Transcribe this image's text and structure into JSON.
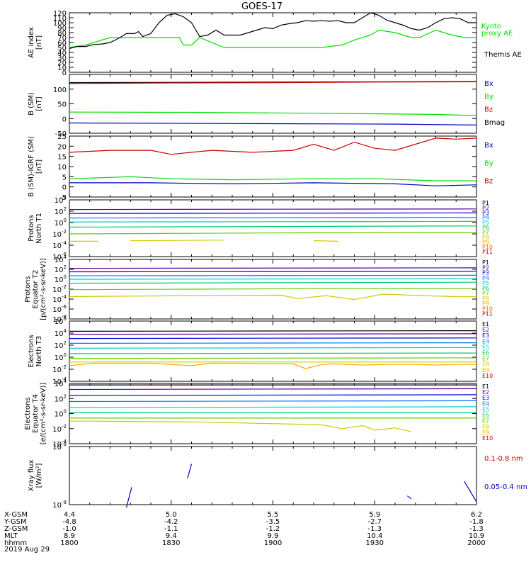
{
  "title": "GOES-17",
  "date_label": "2019 Aug 29",
  "colors": {
    "black": "#000000",
    "green": "#00dd00",
    "red": "#cc0000",
    "blue": "#0000cc",
    "p_series": [
      "#000000",
      "#550099",
      "#0000dd",
      "#0077ff",
      "#00cccc",
      "#00cc66",
      "#66cc00",
      "#cccc00",
      "#ffaa00",
      "#ff6600",
      "#cc0000"
    ],
    "e_series": [
      "#000000",
      "#550099",
      "#0000dd",
      "#0077ff",
      "#00cccc",
      "#00cc66",
      "#66cc00",
      "#cccc00",
      "#ffaa00",
      "#cc0000"
    ]
  },
  "ephemeris": {
    "row_labels": [
      "X-GSM",
      "Y-GSM",
      "Z-GSM",
      "MLT",
      "hhmm"
    ],
    "columns": [
      {
        "x": "4.4",
        "y": "-4.8",
        "z": "-1.0",
        "mlt": "8.9",
        "hhmm": "1800"
      },
      {
        "x": "5.0",
        "y": "-4.2",
        "z": "-1.1",
        "mlt": "9.4",
        "hhmm": "1830"
      },
      {
        "x": "5.5",
        "y": "-3.5",
        "z": "-1.2",
        "mlt": "9.9",
        "hhmm": "1900"
      },
      {
        "x": "5.9",
        "y": "-2.7",
        "z": "-1.3",
        "mlt": "10.4",
        "hhmm": "1930"
      },
      {
        "x": "6.2",
        "y": "-1.8",
        "z": "-1.3",
        "mlt": "10.9",
        "hhmm": "2000"
      }
    ]
  },
  "chart_data": [
    {
      "type": "line",
      "ylabel": "AE index [nT]",
      "ylim": [
        0,
        120
      ],
      "yticks": [
        "0",
        "10",
        "20",
        "30",
        "40",
        "50",
        "60",
        "70",
        "80",
        "90",
        "100",
        "110",
        "120"
      ],
      "legend": [
        "Kyoto proxy AE",
        "Themis AE"
      ],
      "series": [
        {
          "name": "Kyoto proxy AE",
          "color": "green",
          "x": [
            0,
            0.04,
            0.1,
            0.16,
            0.27,
            0.28,
            0.3,
            0.32,
            0.38,
            0.4,
            0.48,
            0.52,
            0.57,
            0.62,
            0.67,
            0.7,
            0.74,
            0.76,
            0.8,
            0.82,
            0.84,
            0.86,
            0.9,
            0.94,
            0.97,
            1.0
          ],
          "y": [
            50,
            55,
            70,
            70,
            70,
            55,
            55,
            70,
            50,
            50,
            50,
            50,
            50,
            50,
            55,
            65,
            75,
            85,
            80,
            75,
            70,
            70,
            85,
            75,
            70,
            70
          ]
        },
        {
          "name": "Themis AE",
          "color": "black",
          "x": [
            0,
            0.02,
            0.04,
            0.06,
            0.08,
            0.1,
            0.12,
            0.14,
            0.16,
            0.17,
            0.18,
            0.2,
            0.22,
            0.24,
            0.26,
            0.28,
            0.3,
            0.32,
            0.34,
            0.36,
            0.38,
            0.4,
            0.42,
            0.44,
            0.46,
            0.48,
            0.5,
            0.52,
            0.54,
            0.56,
            0.58,
            0.6,
            0.62,
            0.64,
            0.66,
            0.68,
            0.7,
            0.72,
            0.74,
            0.76,
            0.78,
            0.8,
            0.82,
            0.84,
            0.86,
            0.88,
            0.9,
            0.92,
            0.94,
            0.96,
            0.98,
            1.0
          ],
          "y": [
            48,
            52,
            52,
            56,
            57,
            60,
            68,
            78,
            78,
            82,
            72,
            78,
            100,
            115,
            118,
            112,
            100,
            72,
            75,
            85,
            75,
            75,
            75,
            80,
            85,
            90,
            88,
            95,
            98,
            100,
            104,
            103,
            104,
            103,
            104,
            100,
            100,
            110,
            120,
            115,
            105,
            100,
            95,
            88,
            85,
            90,
            100,
            108,
            110,
            108,
            100,
            100
          ]
        }
      ]
    },
    {
      "type": "line",
      "ylabel": "B (SM) [nT]",
      "ylim": [
        -50,
        150
      ],
      "yticks": [
        "-50",
        "0",
        "50",
        "100"
      ],
      "legend": [
        "Bx",
        "By",
        "Bz",
        "Bmag"
      ],
      "series": [
        {
          "name": "Bmag",
          "color": "black",
          "x": [
            0,
            0.5,
            1
          ],
          "y": [
            122,
            124,
            126
          ]
        },
        {
          "name": "Bz",
          "color": "red",
          "x": [
            0,
            0.25,
            0.5,
            0.75,
            1
          ],
          "y": [
            119,
            121,
            122,
            124,
            125
          ]
        },
        {
          "name": "By",
          "color": "green",
          "x": [
            0,
            0.3,
            0.6,
            0.9,
            1
          ],
          "y": [
            22,
            21,
            18,
            14,
            10
          ]
        },
        {
          "name": "Bx",
          "color": "blue",
          "x": [
            0,
            0.4,
            0.8,
            1
          ],
          "y": [
            -15,
            -17,
            -19,
            -22
          ]
        }
      ]
    },
    {
      "type": "line",
      "ylabel": "B (SM)-IGRF (SM) [nT]",
      "ylim": [
        -5,
        25
      ],
      "yticks": [
        "-5",
        "0",
        "5",
        "10",
        "15",
        "20",
        "25"
      ],
      "legend": [
        "Bx",
        "By",
        "Bz"
      ],
      "series": [
        {
          "name": "Bz",
          "color": "red",
          "x": [
            0,
            0.05,
            0.1,
            0.15,
            0.2,
            0.25,
            0.3,
            0.35,
            0.4,
            0.45,
            0.5,
            0.55,
            0.6,
            0.65,
            0.7,
            0.75,
            0.8,
            0.85,
            0.9,
            0.95,
            1.0
          ],
          "y": [
            17,
            17.5,
            18,
            18,
            18,
            16,
            17,
            18,
            17.5,
            17,
            17.5,
            18,
            21,
            18,
            22,
            19,
            18,
            21,
            24,
            23.5,
            24
          ]
        },
        {
          "name": "By",
          "color": "green",
          "x": [
            0,
            0.15,
            0.25,
            0.4,
            0.6,
            0.75,
            0.9,
            1.0
          ],
          "y": [
            4,
            5,
            4,
            3.5,
            4,
            4,
            3,
            3
          ]
        },
        {
          "name": "Bx",
          "color": "blue",
          "x": [
            0,
            0.2,
            0.4,
            0.6,
            0.8,
            0.9,
            1.0
          ],
          "y": [
            2,
            2,
            1.5,
            2,
            1.5,
            0.5,
            1
          ]
        }
      ]
    },
    {
      "type": "line",
      "ylabel": "Protons North T1",
      "ylim": [
        -6,
        4
      ],
      "yticks": [
        "10^-6",
        "10^-4",
        "10^-2",
        "10^0",
        "10^2",
        "10^4"
      ],
      "legend": [
        "P1",
        "P2",
        "P3",
        "P4",
        "P5",
        "P6",
        "P7",
        "P8",
        "P9",
        "P10",
        "P11"
      ],
      "series": [
        {
          "name": "P2",
          "x": [
            0,
            1
          ],
          "y": [
            2.3,
            2.4
          ]
        },
        {
          "name": "P3",
          "x": [
            0,
            1
          ],
          "y": [
            1.6,
            1.7
          ]
        },
        {
          "name": "P4",
          "x": [
            0,
            1
          ],
          "y": [
            0.8,
            0.9
          ]
        },
        {
          "name": "P5",
          "x": [
            0,
            1
          ],
          "y": [
            0.1,
            0.2
          ]
        },
        {
          "name": "P6",
          "x": [
            0,
            0.5,
            1
          ],
          "y": [
            -0.8,
            -0.7,
            -0.6
          ]
        },
        {
          "name": "P7",
          "x": [
            0,
            0.3,
            0.6,
            1
          ],
          "y": [
            -2,
            -1.9,
            -1.8,
            -1.8
          ]
        },
        {
          "name": "P8",
          "x": [
            0,
            0.07
          ],
          "y": [
            -3.3,
            -3.3
          ]
        },
        {
          "name": "P8b",
          "x": [
            0.15,
            0.38
          ],
          "y": [
            -3.2,
            -3.1
          ]
        },
        {
          "name": "P8c",
          "x": [
            0.6,
            0.66
          ],
          "y": [
            -3.2,
            -3.3
          ]
        }
      ]
    },
    {
      "type": "line",
      "ylabel": "Protons Equator T2 [p/(cm2-s-sr-keV)]",
      "ylim": [
        -8,
        4
      ],
      "yticks": [
        "10^-8",
        "10^-6",
        "10^-4",
        "10^-2",
        "10^0",
        "10^2",
        "10^4"
      ],
      "legend": [
        "P1",
        "P2",
        "P3",
        "P4",
        "P5",
        "P6",
        "P7",
        "P8",
        "P9",
        "P10",
        "P11"
      ],
      "series": [
        {
          "name": "P2",
          "x": [
            0,
            1
          ],
          "y": [
            2.2,
            2.3
          ]
        },
        {
          "name": "P3",
          "x": [
            0,
            1
          ],
          "y": [
            1.5,
            1.6
          ]
        },
        {
          "name": "P4",
          "x": [
            0,
            1
          ],
          "y": [
            0.7,
            0.8
          ]
        },
        {
          "name": "P5",
          "x": [
            0,
            1
          ],
          "y": [
            0,
            0.1
          ]
        },
        {
          "name": "P6",
          "x": [
            0,
            0.5,
            1
          ],
          "y": [
            -0.8,
            -0.7,
            -0.6
          ]
        },
        {
          "name": "P7",
          "x": [
            0,
            0.3,
            0.6,
            1
          ],
          "y": [
            -2.1,
            -2,
            -1.9,
            -1.9
          ]
        },
        {
          "name": "P8",
          "x": [
            0,
            0.3,
            0.52,
            0.56,
            0.63,
            0.7,
            0.77,
            0.87,
            0.95,
            1.0
          ],
          "y": [
            -3.5,
            -3.3,
            -3.2,
            -3.9,
            -3.3,
            -4.1,
            -3.0,
            -3.3,
            -3.5,
            -3.5
          ]
        }
      ]
    },
    {
      "type": "line",
      "ylabel": "Electrons North T3",
      "ylim": [
        -4,
        6
      ],
      "yticks": [
        "10^-4",
        "10^-2",
        "10^0",
        "10^2",
        "10^4",
        "10^6"
      ],
      "legend": [
        "E1",
        "E2",
        "E3",
        "E4",
        "E5",
        "E6",
        "E7",
        "E8",
        "E9",
        "E10"
      ],
      "series": [
        {
          "name": "E1",
          "x": [
            0,
            1
          ],
          "y": [
            4.3,
            4.4
          ]
        },
        {
          "name": "E2",
          "x": [
            0,
            1
          ],
          "y": [
            3.8,
            3.9
          ]
        },
        {
          "name": "E3",
          "x": [
            0,
            1
          ],
          "y": [
            3.1,
            3.2
          ]
        },
        {
          "name": "E4",
          "x": [
            0,
            1
          ],
          "y": [
            2.3,
            2.4
          ]
        },
        {
          "name": "E5",
          "x": [
            0,
            1
          ],
          "y": [
            1.5,
            1.6
          ]
        },
        {
          "name": "E6",
          "x": [
            0,
            1
          ],
          "y": [
            0.6,
            0.7
          ]
        },
        {
          "name": "E7",
          "x": [
            0,
            1
          ],
          "y": [
            -0.2,
            -0.1
          ]
        },
        {
          "name": "E8",
          "x": [
            0,
            1
          ],
          "y": [
            -0.8,
            -0.8
          ]
        },
        {
          "name": "E9",
          "x": [
            0,
            0.06,
            0.2,
            0.3,
            0.35,
            0.42,
            0.47,
            0.55,
            0.58,
            0.62,
            0.65,
            0.72,
            0.78,
            0.85,
            0.9,
            0.95,
            1.0
          ],
          "y": [
            -1.4,
            -1.0,
            -1.0,
            -1.4,
            -1.0,
            -1.0,
            -1.1,
            -1.1,
            -1.9,
            -1.2,
            -1.1,
            -1.3,
            -1.2,
            -1.2,
            -1.3,
            -1.2,
            -1.2
          ]
        }
      ]
    },
    {
      "type": "line",
      "ylabel": "Electrons Equator T4 [e/(cm2-s-sr-keV)]",
      "ylim": [
        -4,
        4
      ],
      "yticks": [
        "10^-4",
        "10^-2",
        "10^0",
        "10^2",
        "10^4"
      ],
      "legend": [
        "E1",
        "E2",
        "E3",
        "E4",
        "E5",
        "E6",
        "E7",
        "E8",
        "E9",
        "E10"
      ],
      "series": [
        {
          "name": "E1",
          "x": [
            0,
            1
          ],
          "y": [
            3.8,
            3.8
          ]
        },
        {
          "name": "E2",
          "x": [
            0,
            1
          ],
          "y": [
            3.2,
            3.3
          ]
        },
        {
          "name": "E3",
          "x": [
            0,
            1
          ],
          "y": [
            2.4,
            2.5
          ]
        },
        {
          "name": "E4",
          "x": [
            0,
            1
          ],
          "y": [
            1.6,
            1.7
          ]
        },
        {
          "name": "E5",
          "x": [
            0,
            1
          ],
          "y": [
            0.8,
            0.9
          ]
        },
        {
          "name": "E6",
          "x": [
            0,
            1
          ],
          "y": [
            0.1,
            0.1
          ]
        },
        {
          "name": "E7",
          "x": [
            0,
            0.5,
            1
          ],
          "y": [
            -0.6,
            -0.6,
            -0.6
          ]
        },
        {
          "name": "E8",
          "x": [
            0,
            0.3,
            0.55,
            0.62,
            0.67,
            0.72,
            0.75,
            0.8,
            0.84
          ],
          "y": [
            -1.0,
            -1.1,
            -1.4,
            -1.5,
            -2.0,
            -1.6,
            -2.2,
            -1.9,
            -2.4
          ]
        }
      ]
    },
    {
      "type": "line",
      "ylabel": "Xray flux [W/m2]",
      "ylim": [
        -9,
        -8
      ],
      "yticks": [
        "10^-9",
        "10^-8"
      ],
      "legend": [
        "0.1-0.8 nm",
        "0.05-0.4 nm"
      ],
      "series": [
        {
          "name": "s1",
          "color": "blue",
          "x": [
            0.14,
            0.153
          ],
          "y": [
            -9.05,
            -8.7
          ]
        },
        {
          "name": "s2",
          "color": "blue",
          "x": [
            0.29,
            0.3
          ],
          "y": [
            -8.55,
            -8.3
          ]
        },
        {
          "name": "s3",
          "color": "blue",
          "x": [
            0.83,
            0.84
          ],
          "y": [
            -8.85,
            -8.9
          ]
        },
        {
          "name": "s4",
          "color": "blue",
          "x": [
            0.97,
            1.0
          ],
          "y": [
            -8.6,
            -8.95
          ]
        }
      ]
    }
  ]
}
